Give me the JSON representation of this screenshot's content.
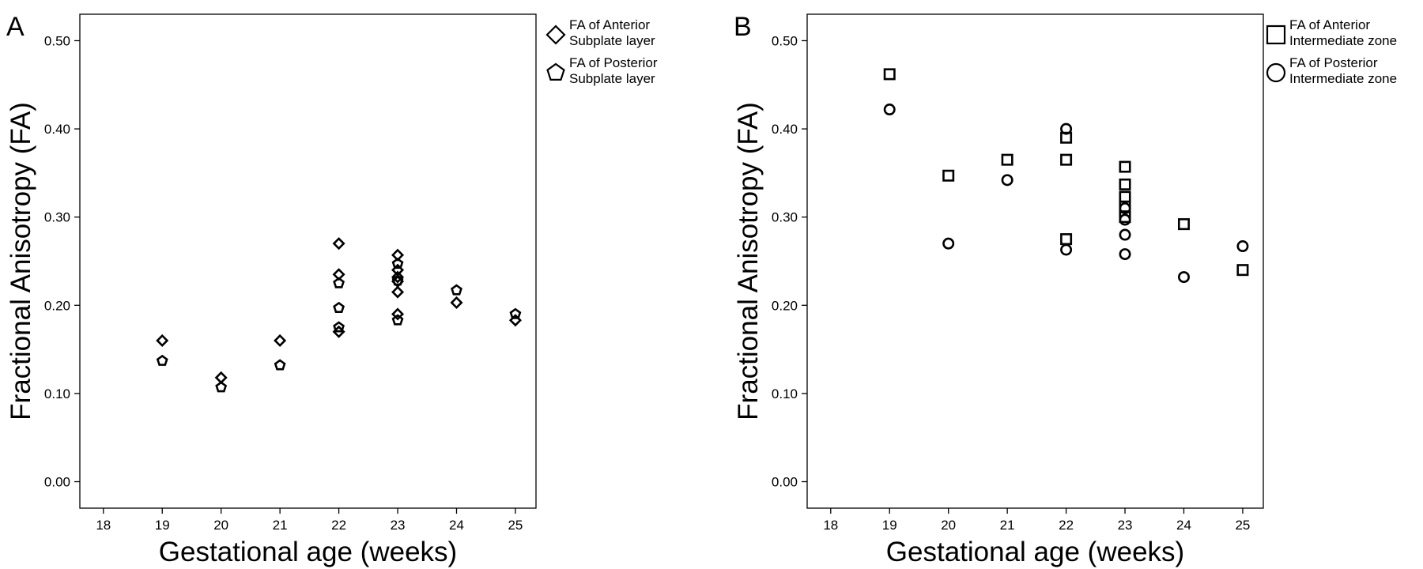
{
  "chart_data": [
    {
      "panel": "A",
      "type": "scatter",
      "xlabel": "Gestational age (weeks)",
      "ylabel": "Fractional Anisotropy (FA)",
      "xlim": [
        17.6,
        25.35
      ],
      "ylim": [
        -0.03,
        0.53
      ],
      "xticks": [
        18,
        19,
        20,
        21,
        22,
        23,
        24,
        25
      ],
      "yticks": [
        0.0,
        0.1,
        0.2,
        0.3,
        0.4,
        0.5
      ],
      "ytick_labels": [
        "0.00",
        "0.10",
        "0.20",
        "0.30",
        "0.40",
        "0.50"
      ],
      "grid": false,
      "legend_position": "outside-right",
      "series": [
        {
          "name": "FA of Anterior Subplate layer",
          "legend_lines": [
            "FA of Anterior",
            "Subplate layer"
          ],
          "marker": "diamond",
          "points": [
            [
              19,
              0.16
            ],
            [
              20,
              0.118
            ],
            [
              21,
              0.16
            ],
            [
              22,
              0.27
            ],
            [
              22,
              0.235
            ],
            [
              22,
              0.17
            ],
            [
              23,
              0.257
            ],
            [
              23,
              0.24
            ],
            [
              23,
              0.232
            ],
            [
              23,
              0.227
            ],
            [
              23,
              0.215
            ],
            [
              23,
              0.19
            ],
            [
              24,
              0.203
            ],
            [
              25,
              0.183
            ]
          ]
        },
        {
          "name": "FA of Posterior Subplate layer",
          "legend_lines": [
            "FA of Posterior",
            "Subplate layer"
          ],
          "marker": "pentagon",
          "points": [
            [
              19,
              0.137
            ],
            [
              20,
              0.107
            ],
            [
              21,
              0.132
            ],
            [
              22,
              0.225
            ],
            [
              22,
              0.197
            ],
            [
              22,
              0.175
            ],
            [
              23,
              0.247
            ],
            [
              23,
              0.228
            ],
            [
              23,
              0.183
            ],
            [
              24,
              0.217
            ],
            [
              25,
              0.19
            ]
          ]
        }
      ]
    },
    {
      "panel": "B",
      "type": "scatter",
      "xlabel": "Gestational age (weeks)",
      "ylabel": "Fractional Anisotropy (FA)",
      "xlim": [
        17.6,
        25.35
      ],
      "ylim": [
        -0.03,
        0.53
      ],
      "xticks": [
        18,
        19,
        20,
        21,
        22,
        23,
        24,
        25
      ],
      "yticks": [
        0.0,
        0.1,
        0.2,
        0.3,
        0.4,
        0.5
      ],
      "ytick_labels": [
        "0.00",
        "0.10",
        "0.20",
        "0.30",
        "0.40",
        "0.50"
      ],
      "grid": false,
      "legend_position": "outside-right",
      "series": [
        {
          "name": "FA of Anterior Intermediate zone",
          "legend_lines": [
            "FA of Anterior",
            "Intermediate zone"
          ],
          "marker": "square",
          "points": [
            [
              19,
              0.462
            ],
            [
              20,
              0.347
            ],
            [
              21,
              0.365
            ],
            [
              22,
              0.39
            ],
            [
              22,
              0.365
            ],
            [
              22,
              0.275
            ],
            [
              23,
              0.357
            ],
            [
              23,
              0.337
            ],
            [
              23,
              0.323
            ],
            [
              23,
              0.312
            ],
            [
              23,
              0.3
            ],
            [
              24,
              0.292
            ],
            [
              25,
              0.24
            ]
          ]
        },
        {
          "name": "FA of Posterior Intermediate zone",
          "legend_lines": [
            "FA of Posterior",
            "Intermediate zone"
          ],
          "marker": "circle",
          "points": [
            [
              19,
              0.422
            ],
            [
              20,
              0.27
            ],
            [
              21,
              0.342
            ],
            [
              22,
              0.4
            ],
            [
              22,
              0.263
            ],
            [
              23,
              0.31
            ],
            [
              23,
              0.297
            ],
            [
              23,
              0.28
            ],
            [
              23,
              0.258
            ],
            [
              24,
              0.232
            ],
            [
              25,
              0.267
            ]
          ]
        }
      ]
    }
  ]
}
